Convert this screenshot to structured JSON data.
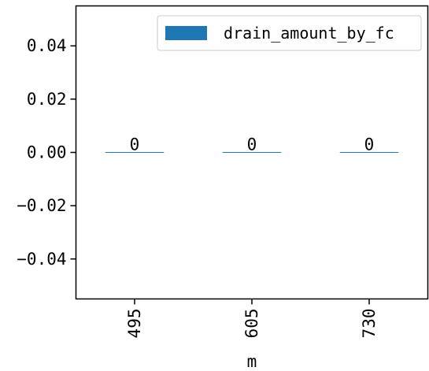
{
  "chart_data": {
    "type": "bar",
    "categories": [
      "495",
      "605",
      "730"
    ],
    "series": [
      {
        "name": "drain_amount_by_fc",
        "values": [
          0,
          0,
          0
        ],
        "color": "#1f77b4"
      }
    ],
    "data_labels": [
      "0",
      "0",
      "0"
    ],
    "xlabel": "m",
    "ylabel": "",
    "ylim": [
      -0.055,
      0.055
    ],
    "yticks": [
      -0.04,
      -0.02,
      0.0,
      0.02,
      0.04
    ],
    "ytick_labels": [
      "−0.04",
      "−0.02",
      "0.00",
      "0.02",
      "0.04"
    ],
    "xtick_rotation": "vertical",
    "grid": false,
    "legend": "upper-right"
  }
}
